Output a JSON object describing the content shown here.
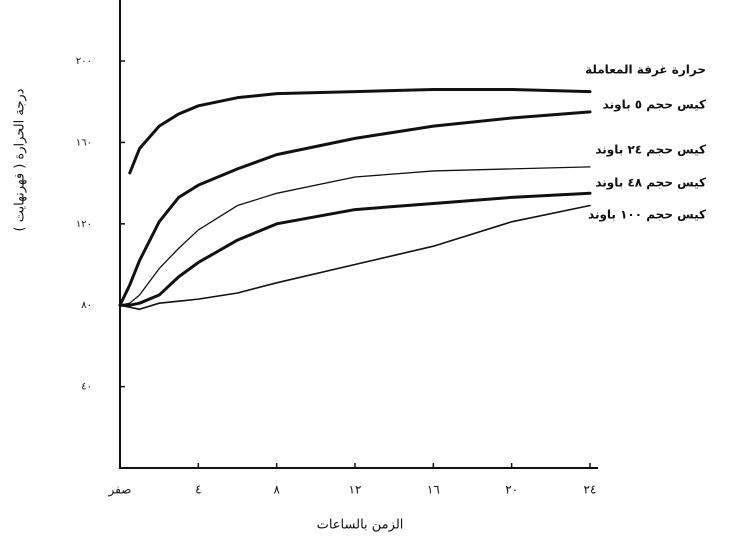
{
  "chart_data": {
    "type": "line",
    "ylabel": "درجة الحرارة ( فهرنهايت )",
    "xlabel": "الزمن  بالساعات",
    "x": [
      0,
      0.5,
      1,
      2,
      3,
      4,
      6,
      8,
      12,
      16,
      20,
      24
    ],
    "xlim": [
      0,
      24
    ],
    "xticks": [
      {
        "value": 0,
        "label": "صفر"
      },
      {
        "value": 4,
        "label": "٤"
      },
      {
        "value": 8,
        "label": "٨"
      },
      {
        "value": 12,
        "label": "١٢"
      },
      {
        "value": 16,
        "label": "١٦"
      },
      {
        "value": 20,
        "label": "٢٠"
      },
      {
        "value": 24,
        "label": "٢٤"
      }
    ],
    "ylim": [
      0,
      230
    ],
    "yticks": [
      {
        "value": 40,
        "label": "٤٠"
      },
      {
        "value": 80,
        "label": "٨٠"
      },
      {
        "value": 120,
        "label": "١٢٠"
      },
      {
        "value": 160,
        "label": "١٦٠"
      },
      {
        "value": 200,
        "label": "٢٠٠"
      }
    ],
    "series": [
      {
        "name": "حرارة غرفة المعاملة",
        "color": "#111111",
        "line_width": 3,
        "values": [
          null,
          145,
          157,
          168,
          174,
          178,
          182,
          184,
          185,
          186,
          186,
          185
        ]
      },
      {
        "name": "كيس حجم ٥ باوند",
        "color": "#111111",
        "line_width": 3,
        "values": [
          80,
          90,
          102,
          121,
          133,
          139,
          147,
          154,
          162,
          168,
          172,
          175
        ]
      },
      {
        "name": "كيس حجم ٢٤ باوند",
        "color": "#111111",
        "line_width": 1.3,
        "values": [
          80,
          81,
          85,
          98,
          108,
          117,
          129,
          135,
          143,
          146,
          147,
          148
        ]
      },
      {
        "name": "كيس حجم ٤٨ باوند",
        "color": "#111111",
        "line_width": 3,
        "values": [
          80,
          80,
          81,
          85,
          94,
          101,
          112,
          120,
          127,
          130,
          133,
          135
        ]
      },
      {
        "name": "كيس حجم ١٠٠ باوند",
        "color": "#111111",
        "line_width": 1.6,
        "values": [
          80,
          79,
          78,
          81,
          82,
          83,
          86,
          91,
          100,
          109,
          121,
          129
        ]
      }
    ]
  }
}
